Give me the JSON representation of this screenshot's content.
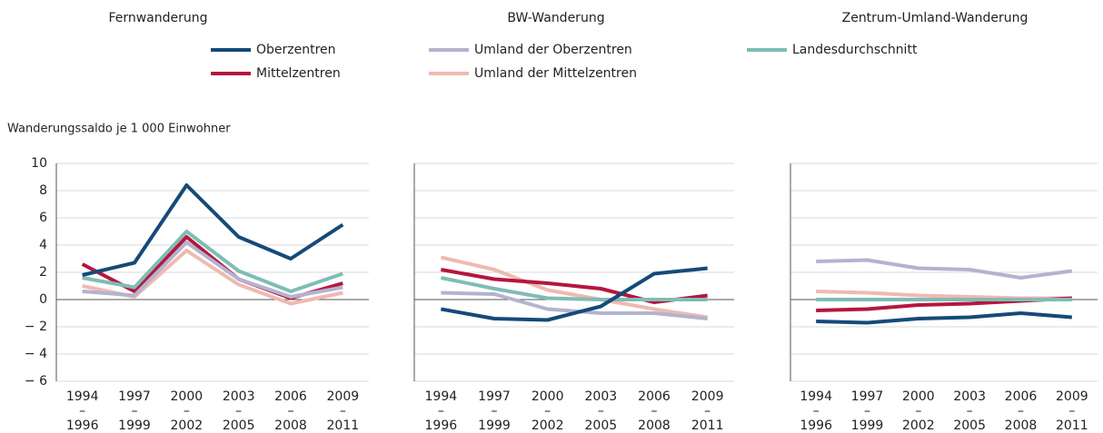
{
  "chart_data": [
    {
      "type": "line",
      "title": "Fernwanderung",
      "ylabel": "Wanderungssaldo je 1 000 Einwohner",
      "categories": [
        "1994\n–\n1996",
        "1997\n–\n1999",
        "2000\n–\n2002",
        "2003\n–\n2005",
        "2006\n–\n2008",
        "2009\n–\n2011"
      ],
      "ylim": [
        -6,
        10
      ],
      "yticks": [
        {
          "value": -6,
          "label": "− 6"
        },
        {
          "value": -4,
          "label": "− 4"
        },
        {
          "value": -2,
          "label": "− 2"
        },
        0,
        2,
        4,
        6,
        8,
        10
      ],
      "grid": true,
      "series": [
        {
          "name": "Oberzentren",
          "color": "#154a78",
          "values": [
            1.8,
            2.7,
            8.4,
            4.6,
            3.0,
            5.5
          ]
        },
        {
          "name": "Umland der Oberzentren",
          "color": "#b3b3d0",
          "values": [
            0.6,
            0.3,
            4.2,
            1.5,
            0.2,
            0.9
          ]
        },
        {
          "name": "Landesdurchschnitt",
          "color": "#7fbcb4",
          "values": [
            1.6,
            0.9,
            5.0,
            2.1,
            0.6,
            1.9
          ]
        },
        {
          "name": "Mittelzentren",
          "color": "#b5163f",
          "values": [
            2.6,
            0.6,
            4.6,
            1.5,
            0.1,
            1.2
          ]
        },
        {
          "name": "Umland der Mittelzentren",
          "color": "#eebab0",
          "values": [
            1.0,
            0.2,
            3.6,
            1.1,
            -0.3,
            0.5
          ]
        }
      ]
    },
    {
      "type": "line",
      "title": "BW-Wanderung",
      "categories": [
        "1994\n–\n1996",
        "1997\n–\n1999",
        "2000\n–\n2002",
        "2003\n–\n2005",
        "2006\n–\n2008",
        "2009\n–\n2011"
      ],
      "ylim": [
        -6,
        10
      ],
      "yticks": [
        -6,
        -4,
        -2,
        0,
        2,
        4,
        6,
        8,
        10
      ],
      "grid": true,
      "series": [
        {
          "color": "#154a78",
          "values": [
            -0.7,
            -1.4,
            -1.5,
            -0.5,
            1.9,
            2.3
          ]
        },
        {
          "color": "#b3b3d0",
          "values": [
            0.5,
            0.4,
            -0.7,
            -1.0,
            -1.0,
            -1.4
          ]
        },
        {
          "color": "#7fbcb4",
          "values": [
            1.6,
            0.8,
            0.1,
            0.0,
            0.0,
            0.0
          ]
        },
        {
          "color": "#b5163f",
          "values": [
            2.2,
            1.5,
            1.2,
            0.8,
            -0.2,
            0.3
          ]
        },
        {
          "color": "#eebab0",
          "values": [
            3.1,
            2.2,
            0.7,
            0.0,
            -0.7,
            -1.3
          ]
        }
      ]
    },
    {
      "type": "line",
      "title": "Zentrum-Umland-Wanderung",
      "categories": [
        "1994\n–\n1996",
        "1997\n–\n1999",
        "2000\n–\n2002",
        "2003\n–\n2005",
        "2006\n–\n2008",
        "2009\n–\n2011"
      ],
      "ylim": [
        -6,
        10
      ],
      "yticks": [
        -6,
        -4,
        -2,
        0,
        2,
        4,
        6,
        8,
        10
      ],
      "grid": true,
      "series": [
        {
          "color": "#154a78",
          "values": [
            -1.6,
            -1.7,
            -1.4,
            -1.3,
            -1.0,
            -1.3
          ]
        },
        {
          "color": "#b3b3d0",
          "values": [
            2.8,
            2.9,
            2.3,
            2.2,
            1.6,
            2.1
          ]
        },
        {
          "color": "#7fbcb4",
          "values": [
            0.0,
            0.0,
            0.0,
            0.0,
            0.0,
            0.0
          ]
        },
        {
          "color": "#b5163f",
          "values": [
            -0.8,
            -0.7,
            -0.4,
            -0.3,
            -0.1,
            0.1
          ]
        },
        {
          "color": "#eebab0",
          "values": [
            0.6,
            0.5,
            0.3,
            0.2,
            0.1,
            0.1
          ]
        }
      ]
    }
  ]
}
